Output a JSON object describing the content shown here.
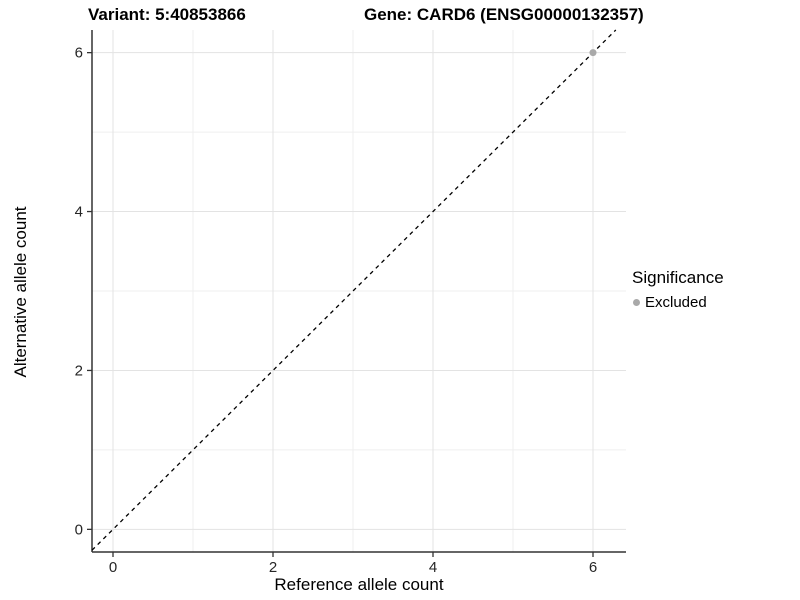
{
  "chart_data": {
    "type": "scatter",
    "title_variant": "Variant: 5:40853866",
    "title_gene": "Gene: CARD6 (ENSG00000132357)",
    "xlabel": "Reference allele count",
    "ylabel": "Alternative allele count",
    "xlim": [
      -0.2625,
      6.4125
    ],
    "ylim": [
      -0.285,
      6.285
    ],
    "x_ticks": [
      0,
      2,
      4,
      6
    ],
    "y_ticks": [
      0,
      2,
      4,
      6
    ],
    "x_minor_ticks": [
      1,
      3,
      5
    ],
    "y_minor_ticks": [
      1,
      3,
      5
    ],
    "grid": "major and minor gridlines on, white background",
    "reference_line": {
      "type": "identity y=x",
      "style": "dashed",
      "color": "#000000"
    },
    "series": [
      {
        "name": "Excluded",
        "color": "#a9a9a9",
        "points": [
          [
            6,
            6
          ]
        ]
      }
    ],
    "legend": {
      "title": "Significance",
      "position": "right",
      "items": [
        {
          "label": "Excluded",
          "color": "#a9a9a9"
        }
      ]
    },
    "colors": {
      "axis_line": "#333333",
      "grid_major": "#e3e3e3",
      "grid_minor": "#efefef",
      "tick_text": "#262626"
    }
  }
}
